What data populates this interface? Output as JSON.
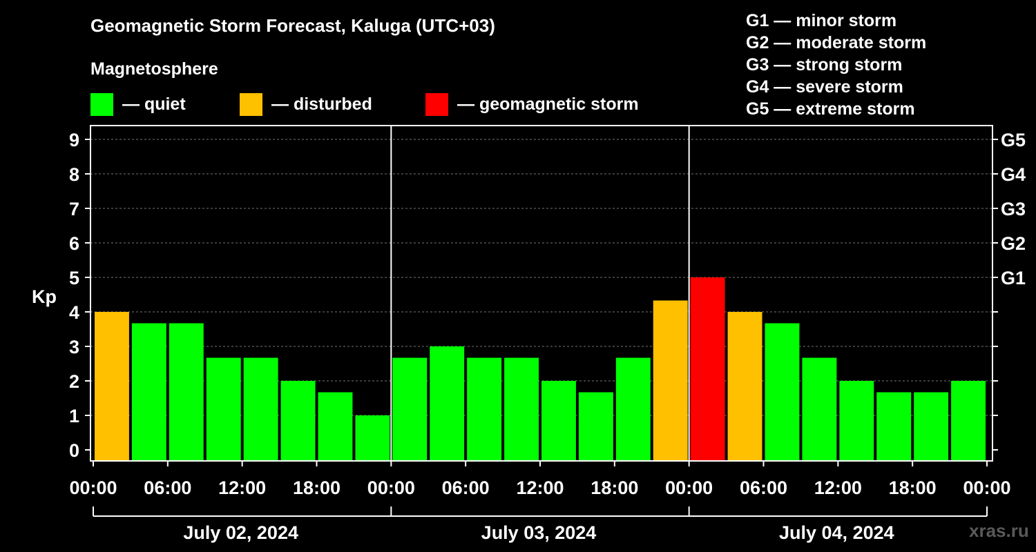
{
  "chart_data": {
    "type": "bar",
    "title": "Geomagnetic Storm Forecast, Kaluga (UTC+03)",
    "subtitle": "Magnetosphere",
    "ylabel": "Kp",
    "ylim": [
      0,
      9
    ],
    "yticks": [
      0,
      1,
      2,
      3,
      4,
      5,
      6,
      7,
      8,
      9
    ],
    "right_ticks": [
      {
        "kp": 5,
        "label": "G1"
      },
      {
        "kp": 6,
        "label": "G2"
      },
      {
        "kp": 7,
        "label": "G3"
      },
      {
        "kp": 8,
        "label": "G4"
      },
      {
        "kp": 9,
        "label": "G5"
      }
    ],
    "xtick_labels": [
      "00:00",
      "06:00",
      "12:00",
      "18:00",
      "00:00",
      "06:00",
      "12:00",
      "18:00",
      "00:00",
      "06:00",
      "12:00",
      "18:00",
      "00:00"
    ],
    "days": [
      "July 02, 2024",
      "July 03, 2024",
      "July 04, 2024"
    ],
    "interval_hours": 3,
    "values": [
      4,
      3.67,
      3.67,
      2.67,
      2.67,
      2,
      1.67,
      1,
      2.67,
      3,
      2.67,
      2.67,
      2,
      1.67,
      2.67,
      4.33,
      5,
      4,
      3.67,
      2.67,
      2,
      1.67,
      1.67,
      2
    ],
    "statuses": [
      "disturbed",
      "quiet",
      "quiet",
      "quiet",
      "quiet",
      "quiet",
      "quiet",
      "quiet",
      "quiet",
      "quiet",
      "quiet",
      "quiet",
      "quiet",
      "quiet",
      "quiet",
      "disturbed",
      "storm",
      "disturbed",
      "quiet",
      "quiet",
      "quiet",
      "quiet",
      "quiet",
      "quiet"
    ],
    "grid": true,
    "legend": [
      {
        "key": "quiet",
        "label": "— quiet",
        "color": "#00ff00"
      },
      {
        "key": "disturbed",
        "label": "— disturbed",
        "color": "#ffc000"
      },
      {
        "key": "storm",
        "label": "— geomagnetic storm",
        "color": "#ff0000"
      }
    ],
    "g_levels": [
      "G1 — minor storm",
      "G2 — moderate storm",
      "G3 — strong storm",
      "G4 — severe storm",
      "G5 — extreme storm"
    ]
  },
  "watermark": "xras.ru"
}
